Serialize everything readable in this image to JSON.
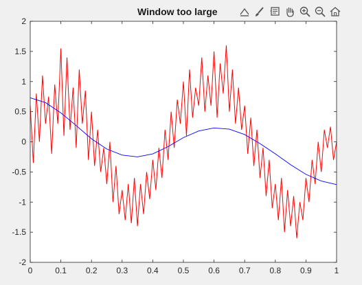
{
  "toolbar": {
    "icons": [
      "data-export-icon",
      "brush-icon",
      "data-tips-icon",
      "pan-hand-icon",
      "zoom-in-icon",
      "zoom-out-icon",
      "home-restore-icon"
    ]
  },
  "colors": {
    "background": "#f0f0f0",
    "axes_bg": "#ffffff",
    "noisy_signal": "#ff0000",
    "smoothed_signal": "#0000ff",
    "axis": "#262626"
  },
  "chart_data": {
    "type": "line",
    "title": "Window too large",
    "xlabel": "",
    "ylabel": "",
    "xlim": [
      0,
      1
    ],
    "ylim": [
      -2,
      2
    ],
    "xticks": [
      "0",
      "0.1",
      "0.2",
      "0.3",
      "0.4",
      "0.5",
      "0.6",
      "0.7",
      "0.8",
      "0.9",
      "1"
    ],
    "yticks": [
      "2",
      "1.5",
      "1",
      "0.5",
      "0",
      "-0.5",
      "-1",
      "-1.5",
      "-2"
    ],
    "grid": false,
    "series": [
      {
        "color": "#ff0000",
        "x": [
          0.0,
          0.01,
          0.02,
          0.03,
          0.04,
          0.05,
          0.06,
          0.07,
          0.08,
          0.09,
          0.1,
          0.11,
          0.12,
          0.13,
          0.14,
          0.15,
          0.16,
          0.17,
          0.18,
          0.19,
          0.2,
          0.21,
          0.22,
          0.23,
          0.24,
          0.25,
          0.26,
          0.27,
          0.28,
          0.29,
          0.3,
          0.31,
          0.32,
          0.33,
          0.34,
          0.35,
          0.36,
          0.37,
          0.38,
          0.39,
          0.4,
          0.41,
          0.42,
          0.43,
          0.44,
          0.45,
          0.46,
          0.47,
          0.48,
          0.49,
          0.5,
          0.51,
          0.52,
          0.53,
          0.54,
          0.55,
          0.56,
          0.57,
          0.58,
          0.59,
          0.6,
          0.61,
          0.62,
          0.63,
          0.64,
          0.65,
          0.66,
          0.67,
          0.68,
          0.69,
          0.7,
          0.71,
          0.72,
          0.73,
          0.74,
          0.75,
          0.76,
          0.77,
          0.78,
          0.79,
          0.8,
          0.81,
          0.82,
          0.83,
          0.84,
          0.85,
          0.86,
          0.87,
          0.88,
          0.89,
          0.9,
          0.91,
          0.92,
          0.93,
          0.94,
          0.95,
          0.96,
          0.97,
          0.98,
          0.99,
          1.0
        ],
        "y": [
          0.6,
          -0.35,
          0.8,
          0.0,
          1.1,
          0.3,
          0.75,
          -0.2,
          0.95,
          0.3,
          1.55,
          0.1,
          1.4,
          0.2,
          0.9,
          -0.1,
          1.2,
          0.3,
          0.85,
          -0.3,
          0.5,
          -0.4,
          0.2,
          -0.5,
          -0.1,
          -0.7,
          0.0,
          -1.0,
          -0.4,
          -1.2,
          -0.8,
          -1.3,
          -0.7,
          -1.35,
          -0.6,
          -1.4,
          -0.7,
          -1.2,
          -0.5,
          -0.95,
          -0.3,
          -0.8,
          -0.1,
          -0.6,
          0.2,
          -0.3,
          0.5,
          -0.1,
          0.7,
          0.3,
          1.0,
          0.1,
          1.2,
          0.4,
          0.9,
          0.6,
          1.4,
          0.5,
          1.1,
          0.6,
          1.5,
          0.4,
          1.3,
          0.8,
          1.6,
          0.5,
          1.2,
          0.3,
          0.9,
          0.2,
          0.6,
          -0.2,
          0.4,
          -0.4,
          0.2,
          -0.6,
          -0.1,
          -0.9,
          -0.3,
          -1.1,
          -0.7,
          -1.3,
          -0.6,
          -1.5,
          -0.8,
          -1.4,
          -0.9,
          -1.6,
          -1.0,
          -1.3,
          -0.6,
          -1.0,
          -0.3,
          -0.7,
          0.0,
          -0.5,
          0.2,
          -0.1,
          0.25,
          -0.3,
          0.0
        ]
      },
      {
        "color": "#0000ff",
        "x": [
          0.0,
          0.05,
          0.1,
          0.15,
          0.2,
          0.25,
          0.3,
          0.35,
          0.4,
          0.45,
          0.5,
          0.55,
          0.6,
          0.65,
          0.7,
          0.75,
          0.8,
          0.85,
          0.9,
          0.95,
          1.0
        ],
        "y": [
          0.73,
          0.65,
          0.48,
          0.27,
          0.05,
          -0.12,
          -0.22,
          -0.25,
          -0.2,
          -0.08,
          0.07,
          0.18,
          0.23,
          0.21,
          0.12,
          -0.03,
          -0.2,
          -0.38,
          -0.54,
          -0.65,
          -0.71
        ]
      }
    ]
  }
}
